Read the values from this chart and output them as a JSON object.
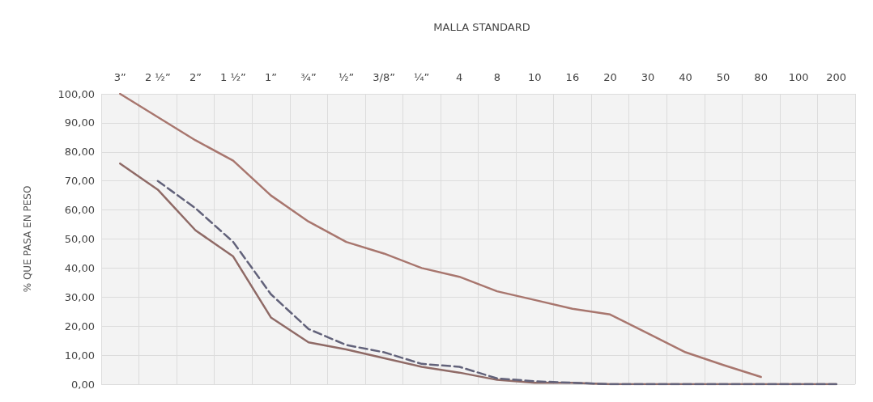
{
  "chart_data": {
    "type": "line",
    "title": "MALLA STANDARD",
    "ylabel": "% QUE PASA EN PESO",
    "categories": [
      "3”",
      "2 ½”",
      "2”",
      "1 ½”",
      "1”",
      "¾”",
      "½”",
      "3/8”",
      "¼”",
      "4",
      "8",
      "10",
      "16",
      "20",
      "30",
      "40",
      "50",
      "80",
      "100",
      "200"
    ],
    "series": [
      {
        "color": "#a8766e",
        "line_style": "solid",
        "values": [
          100,
          92,
          84,
          77,
          65,
          56,
          49,
          45,
          40,
          37,
          32,
          29,
          26,
          24,
          17.5,
          11,
          6.6,
          2.5,
          null,
          null
        ]
      },
      {
        "color": "#8f6a66",
        "line_style": "solid",
        "values": [
          76,
          67,
          53,
          44,
          23,
          14.4,
          12,
          9,
          6,
          4,
          1.5,
          0.5,
          0.5,
          0,
          0,
          0,
          0,
          0,
          0,
          0
        ]
      },
      {
        "color": "#62627a",
        "line_style": "dashed",
        "values": [
          null,
          70,
          60.6,
          49,
          31,
          19,
          13.5,
          11,
          7,
          6,
          2,
          1,
          0.5,
          0,
          0,
          0,
          0,
          0,
          0,
          0
        ]
      }
    ],
    "ylim": [
      0,
      100
    ],
    "yticks": [
      {
        "value": 0,
        "label": "0,00"
      },
      {
        "value": 10,
        "label": "10,00"
      },
      {
        "value": 20,
        "label": "20,00"
      },
      {
        "value": 30,
        "label": "30,00"
      },
      {
        "value": 40,
        "label": "40,00"
      },
      {
        "value": 50,
        "label": "50,00"
      },
      {
        "value": 60,
        "label": "60,00"
      },
      {
        "value": 70,
        "label": "70,00"
      },
      {
        "value": 80,
        "label": "80,00"
      },
      {
        "value": 90,
        "label": "90,00"
      },
      {
        "value": 100,
        "label": "100,00"
      }
    ],
    "grid": true,
    "marker": "none"
  }
}
